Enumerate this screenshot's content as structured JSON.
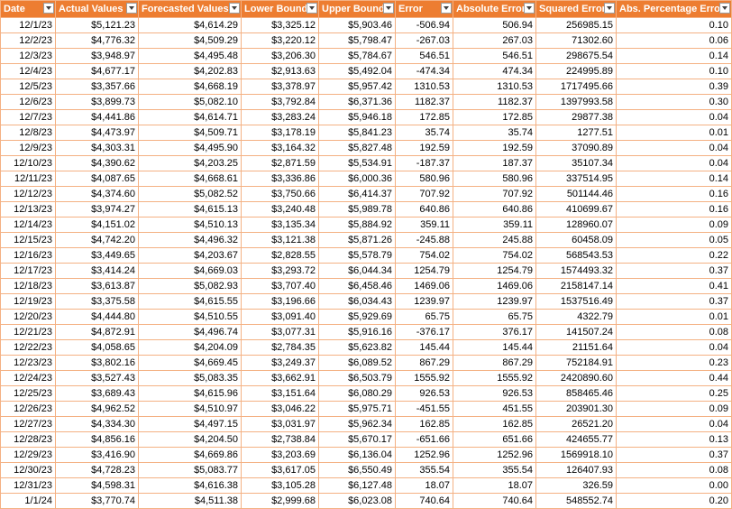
{
  "columns": [
    "Date",
    "Actual Values",
    "Forecasted Values",
    "Lower Bound",
    "Upper Bound",
    "Error",
    "Absolute Error",
    "Squared Error",
    "Abs. Percentage Error"
  ],
  "rows": [
    [
      "12/1/23",
      "$5,121.23",
      "$4,614.29",
      "$3,325.12",
      "$5,903.46",
      "-506.94",
      "506.94",
      "256985.15",
      "0.10"
    ],
    [
      "12/2/23",
      "$4,776.32",
      "$4,509.29",
      "$3,220.12",
      "$5,798.47",
      "-267.03",
      "267.03",
      "71302.60",
      "0.06"
    ],
    [
      "12/3/23",
      "$3,948.97",
      "$4,495.48",
      "$3,206.30",
      "$5,784.67",
      "546.51",
      "546.51",
      "298675.54",
      "0.14"
    ],
    [
      "12/4/23",
      "$4,677.17",
      "$4,202.83",
      "$2,913.63",
      "$5,492.04",
      "-474.34",
      "474.34",
      "224995.89",
      "0.10"
    ],
    [
      "12/5/23",
      "$3,357.66",
      "$4,668.19",
      "$3,378.97",
      "$5,957.42",
      "1310.53",
      "1310.53",
      "1717495.66",
      "0.39"
    ],
    [
      "12/6/23",
      "$3,899.73",
      "$5,082.10",
      "$3,792.84",
      "$6,371.36",
      "1182.37",
      "1182.37",
      "1397993.58",
      "0.30"
    ],
    [
      "12/7/23",
      "$4,441.86",
      "$4,614.71",
      "$3,283.24",
      "$5,946.18",
      "172.85",
      "172.85",
      "29877.38",
      "0.04"
    ],
    [
      "12/8/23",
      "$4,473.97",
      "$4,509.71",
      "$3,178.19",
      "$5,841.23",
      "35.74",
      "35.74",
      "1277.51",
      "0.01"
    ],
    [
      "12/9/23",
      "$4,303.31",
      "$4,495.90",
      "$3,164.32",
      "$5,827.48",
      "192.59",
      "192.59",
      "37090.89",
      "0.04"
    ],
    [
      "12/10/23",
      "$4,390.62",
      "$4,203.25",
      "$2,871.59",
      "$5,534.91",
      "-187.37",
      "187.37",
      "35107.34",
      "0.04"
    ],
    [
      "12/11/23",
      "$4,087.65",
      "$4,668.61",
      "$3,336.86",
      "$6,000.36",
      "580.96",
      "580.96",
      "337514.95",
      "0.14"
    ],
    [
      "12/12/23",
      "$4,374.60",
      "$5,082.52",
      "$3,750.66",
      "$6,414.37",
      "707.92",
      "707.92",
      "501144.46",
      "0.16"
    ],
    [
      "12/13/23",
      "$3,974.27",
      "$4,615.13",
      "$3,240.48",
      "$5,989.78",
      "640.86",
      "640.86",
      "410699.67",
      "0.16"
    ],
    [
      "12/14/23",
      "$4,151.02",
      "$4,510.13",
      "$3,135.34",
      "$5,884.92",
      "359.11",
      "359.11",
      "128960.07",
      "0.09"
    ],
    [
      "12/15/23",
      "$4,742.20",
      "$4,496.32",
      "$3,121.38",
      "$5,871.26",
      "-245.88",
      "245.88",
      "60458.09",
      "0.05"
    ],
    [
      "12/16/23",
      "$3,449.65",
      "$4,203.67",
      "$2,828.55",
      "$5,578.79",
      "754.02",
      "754.02",
      "568543.53",
      "0.22"
    ],
    [
      "12/17/23",
      "$3,414.24",
      "$4,669.03",
      "$3,293.72",
      "$6,044.34",
      "1254.79",
      "1254.79",
      "1574493.32",
      "0.37"
    ],
    [
      "12/18/23",
      "$3,613.87",
      "$5,082.93",
      "$3,707.40",
      "$6,458.46",
      "1469.06",
      "1469.06",
      "2158147.14",
      "0.41"
    ],
    [
      "12/19/23",
      "$3,375.58",
      "$4,615.55",
      "$3,196.66",
      "$6,034.43",
      "1239.97",
      "1239.97",
      "1537516.49",
      "0.37"
    ],
    [
      "12/20/23",
      "$4,444.80",
      "$4,510.55",
      "$3,091.40",
      "$5,929.69",
      "65.75",
      "65.75",
      "4322.79",
      "0.01"
    ],
    [
      "12/21/23",
      "$4,872.91",
      "$4,496.74",
      "$3,077.31",
      "$5,916.16",
      "-376.17",
      "376.17",
      "141507.24",
      "0.08"
    ],
    [
      "12/22/23",
      "$4,058.65",
      "$4,204.09",
      "$2,784.35",
      "$5,623.82",
      "145.44",
      "145.44",
      "21151.64",
      "0.04"
    ],
    [
      "12/23/23",
      "$3,802.16",
      "$4,669.45",
      "$3,249.37",
      "$6,089.52",
      "867.29",
      "867.29",
      "752184.91",
      "0.23"
    ],
    [
      "12/24/23",
      "$3,527.43",
      "$5,083.35",
      "$3,662.91",
      "$6,503.79",
      "1555.92",
      "1555.92",
      "2420890.60",
      "0.44"
    ],
    [
      "12/25/23",
      "$3,689.43",
      "$4,615.96",
      "$3,151.64",
      "$6,080.29",
      "926.53",
      "926.53",
      "858465.46",
      "0.25"
    ],
    [
      "12/26/23",
      "$4,962.52",
      "$4,510.97",
      "$3,046.22",
      "$5,975.71",
      "-451.55",
      "451.55",
      "203901.30",
      "0.09"
    ],
    [
      "12/27/23",
      "$4,334.30",
      "$4,497.15",
      "$3,031.97",
      "$5,962.34",
      "162.85",
      "162.85",
      "26521.20",
      "0.04"
    ],
    [
      "12/28/23",
      "$4,856.16",
      "$4,204.50",
      "$2,738.84",
      "$5,670.17",
      "-651.66",
      "651.66",
      "424655.77",
      "0.13"
    ],
    [
      "12/29/23",
      "$3,416.90",
      "$4,669.86",
      "$3,203.69",
      "$6,136.04",
      "1252.96",
      "1252.96",
      "1569918.10",
      "0.37"
    ],
    [
      "12/30/23",
      "$4,728.23",
      "$5,083.77",
      "$3,617.05",
      "$6,550.49",
      "355.54",
      "355.54",
      "126407.93",
      "0.08"
    ],
    [
      "12/31/23",
      "$4,598.31",
      "$4,616.38",
      "$3,105.28",
      "$6,127.48",
      "18.07",
      "18.07",
      "326.59",
      "0.00"
    ],
    [
      "1/1/24",
      "$3,770.74",
      "$4,511.38",
      "$2,999.68",
      "$6,023.08",
      "740.64",
      "740.64",
      "548552.74",
      "0.20"
    ]
  ],
  "filter_icon": "chevron-down-icon",
  "colors": {
    "header_bg": "#ed7d31",
    "header_text": "#ffffff",
    "grid_border": "#f4b183",
    "cell_bg": "#ffffff"
  }
}
